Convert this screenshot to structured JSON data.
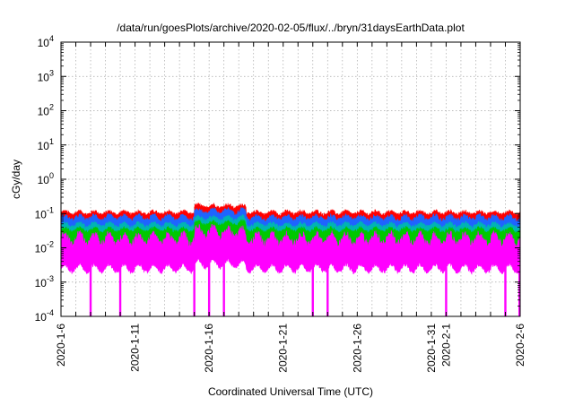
{
  "chart_data": {
    "type": "line",
    "title": "/data/run/goesPlots/archive/2020-02-05/flux/../bryn/31daysEarthData.plot",
    "xlabel": "Coordinated Universal Time (UTC)",
    "ylabel": "cGy/day",
    "yscale": "log",
    "ylim": [
      0.0001,
      10000
    ],
    "xlim": [
      "2020-01-06",
      "2020-02-06"
    ],
    "grid": true,
    "x_ticks": [
      "2020-1-6",
      "2020-1-11",
      "2020-1-16",
      "2020-1-21",
      "2020-1-26",
      "2020-1-31",
      "2020-2-1",
      "2020-2-6"
    ],
    "y_ticks": [
      {
        "base": "10",
        "exp": "-4"
      },
      {
        "base": "10",
        "exp": "-3"
      },
      {
        "base": "10",
        "exp": "-2"
      },
      {
        "base": "10",
        "exp": "-1"
      },
      {
        "base": "10",
        "exp": "0"
      },
      {
        "base": "10",
        "exp": "1"
      },
      {
        "base": "10",
        "exp": "2"
      },
      {
        "base": "10",
        "exp": "3"
      },
      {
        "base": "10",
        "exp": "4"
      }
    ],
    "series": [
      {
        "color": "#ff0000",
        "values_approx": "0.05-0.10"
      },
      {
        "color": "#1e64ff",
        "values_approx": "0.03-0.07"
      },
      {
        "color": "#00b4b4",
        "values_approx": "0.02-0.04"
      },
      {
        "color": "#00c800",
        "values_approx": "0.015-0.03"
      },
      {
        "color": "#ff00ff",
        "values_approx": "0.004-0.04"
      }
    ],
    "dropouts": [
      "2020-01-08",
      "2020-01-10",
      "2020-01-15",
      "2020-01-16",
      "2020-01-17",
      "2020-01-23",
      "2020-01-24",
      "2020-02-01",
      "2020-02-05",
      "2020-02-06"
    ]
  }
}
